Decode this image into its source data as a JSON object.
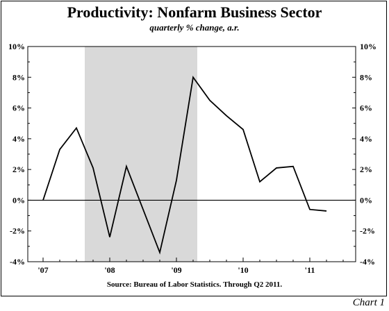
{
  "chart_data": {
    "type": "line",
    "title": "Productivity: Nonfarm Business Sector",
    "subtitle": "quarterly % change, a.r.",
    "source": "Source: Bureau of Labor Statistics. Through Q2 2011.",
    "chart_label": "Chart 1",
    "x_tick_labels": [
      "'07",
      "'08",
      "'09",
      "'10",
      "'11"
    ],
    "y_tick_labels": [
      "-4%",
      "-2%",
      "0%",
      "2%",
      "4%",
      "6%",
      "8%",
      "10%"
    ],
    "ylim": [
      -4,
      10
    ],
    "y_ticks": [
      -4,
      -2,
      0,
      2,
      4,
      6,
      8,
      10
    ],
    "x_start": "2007-Q1",
    "x_end": "2011-Q4",
    "recession_shading": {
      "start": "2007-Q4",
      "end": "2009-Q2"
    },
    "series": [
      {
        "quarters": [
          "2007-Q1",
          "2007-Q2",
          "2007-Q3",
          "2007-Q4",
          "2008-Q1",
          "2008-Q2",
          "2008-Q3",
          "2008-Q4",
          "2009-Q1",
          "2009-Q2",
          "2009-Q3",
          "2009-Q4",
          "2010-Q1",
          "2010-Q2",
          "2010-Q3",
          "2010-Q4",
          "2011-Q1",
          "2011-Q2"
        ],
        "values": [
          0.0,
          3.3,
          4.7,
          2.1,
          -2.4,
          2.2,
          -0.6,
          -3.4,
          1.3,
          8.0,
          6.5,
          5.5,
          4.6,
          1.2,
          2.1,
          2.2,
          -0.6,
          -0.7
        ]
      }
    ],
    "zero_line": true,
    "grid": false,
    "colors": {
      "line": "#000000",
      "shading": "#d9d9d9"
    }
  }
}
